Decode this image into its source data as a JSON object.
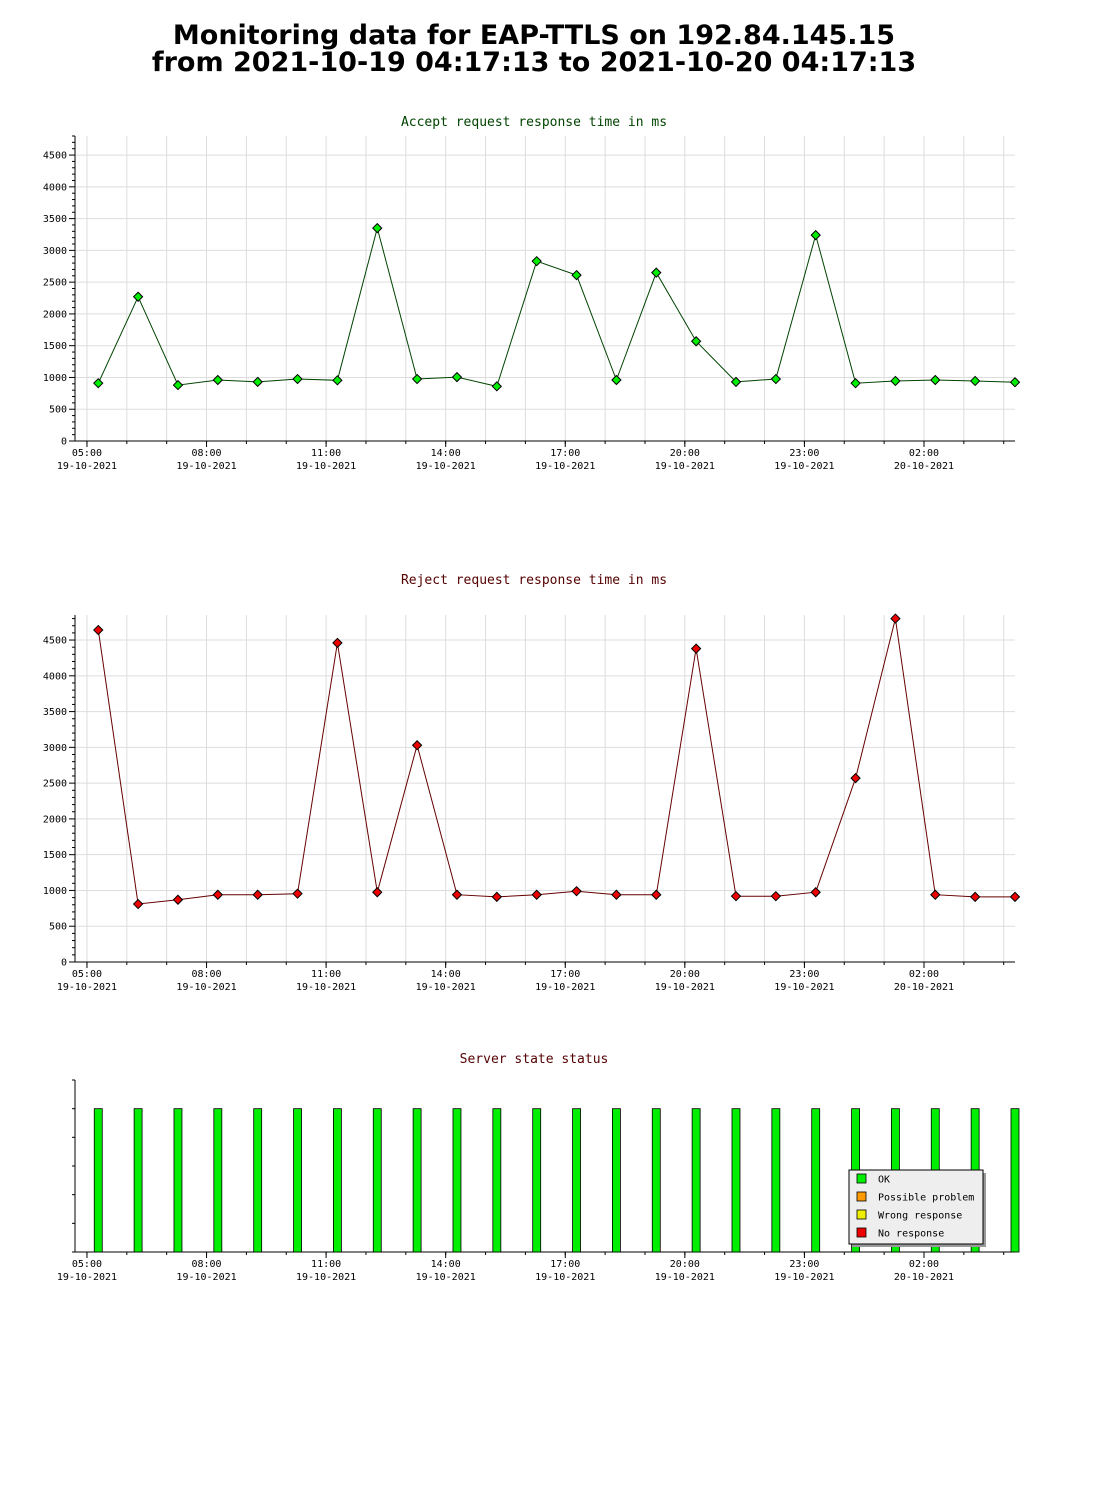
{
  "header": {
    "title_line1": "Monitoring data for EAP-TTLS on 192.84.145.15",
    "title_line2": "from 2021-10-19 04:17:13 to 2021-10-20 04:17:13"
  },
  "colors": {
    "accept_line": "#004400",
    "accept_marker": "#00ee00",
    "reject_line": "#660000",
    "reject_marker": "#ee0000",
    "accept_title": "#004400",
    "reject_title": "#550000",
    "status_title": "#550000",
    "grid": "#dddddd",
    "ok": "#00ee00",
    "possible_problem": "#ff9900",
    "wrong_response": "#eeee00",
    "no_response": "#ee0000"
  },
  "chart_data": [
    {
      "type": "line",
      "title": "Accept request response time in ms",
      "xlabel": "",
      "ylabel": "",
      "xlim": [
        "2021-10-19 04:42",
        "2021-10-20 04:17"
      ],
      "ylim": [
        0,
        4800
      ],
      "yticks": [
        0,
        500,
        1000,
        1500,
        2000,
        2500,
        3000,
        3500,
        4000,
        4500
      ],
      "xticks": [
        {
          "time": "05:00",
          "date": "19-10-2021",
          "t": "2021-10-19 05:00"
        },
        {
          "time": "08:00",
          "date": "19-10-2021",
          "t": "2021-10-19 08:00"
        },
        {
          "time": "11:00",
          "date": "19-10-2021",
          "t": "2021-10-19 11:00"
        },
        {
          "time": "14:00",
          "date": "19-10-2021",
          "t": "2021-10-19 14:00"
        },
        {
          "time": "17:00",
          "date": "19-10-2021",
          "t": "2021-10-19 17:00"
        },
        {
          "time": "20:00",
          "date": "19-10-2021",
          "t": "2021-10-19 20:00"
        },
        {
          "time": "23:00",
          "date": "19-10-2021",
          "t": "2021-10-19 23:00"
        },
        {
          "time": "02:00",
          "date": "20-10-2021",
          "t": "2021-10-20 02:00"
        }
      ],
      "grid": true,
      "x": [
        "2021-10-19 05:17",
        "2021-10-19 06:17",
        "2021-10-19 07:17",
        "2021-10-19 08:17",
        "2021-10-19 09:17",
        "2021-10-19 10:17",
        "2021-10-19 11:17",
        "2021-10-19 12:17",
        "2021-10-19 13:17",
        "2021-10-19 14:17",
        "2021-10-19 15:17",
        "2021-10-19 16:17",
        "2021-10-19 17:17",
        "2021-10-19 18:17",
        "2021-10-19 19:17",
        "2021-10-19 20:17",
        "2021-10-19 21:17",
        "2021-10-19 22:17",
        "2021-10-19 23:17",
        "2021-10-20 00:17",
        "2021-10-20 01:17",
        "2021-10-20 02:17",
        "2021-10-20 03:17",
        "2021-10-20 04:17"
      ],
      "series": [
        {
          "values": [
            910,
            2270,
            880,
            960,
            930,
            975,
            955,
            3350,
            975,
            1005,
            860,
            2830,
            2610,
            960,
            2650,
            1570,
            930,
            975,
            3240,
            910,
            945,
            960,
            945,
            925
          ]
        }
      ]
    },
    {
      "type": "line",
      "title": "Reject request response time in ms",
      "xlabel": "",
      "ylabel": "",
      "xlim": [
        "2021-10-19 04:42",
        "2021-10-20 04:17"
      ],
      "ylim": [
        0,
        4850
      ],
      "yticks": [
        0,
        500,
        1000,
        1500,
        2000,
        2500,
        3000,
        3500,
        4000,
        4500
      ],
      "xticks": [
        {
          "time": "05:00",
          "date": "19-10-2021",
          "t": "2021-10-19 05:00"
        },
        {
          "time": "08:00",
          "date": "19-10-2021",
          "t": "2021-10-19 08:00"
        },
        {
          "time": "11:00",
          "date": "19-10-2021",
          "t": "2021-10-19 11:00"
        },
        {
          "time": "14:00",
          "date": "19-10-2021",
          "t": "2021-10-19 14:00"
        },
        {
          "time": "17:00",
          "date": "19-10-2021",
          "t": "2021-10-19 17:00"
        },
        {
          "time": "20:00",
          "date": "19-10-2021",
          "t": "2021-10-19 20:00"
        },
        {
          "time": "23:00",
          "date": "19-10-2021",
          "t": "2021-10-19 23:00"
        },
        {
          "time": "02:00",
          "date": "20-10-2021",
          "t": "2021-10-20 02:00"
        }
      ],
      "grid": true,
      "x": [
        "2021-10-19 05:17",
        "2021-10-19 06:17",
        "2021-10-19 07:17",
        "2021-10-19 08:17",
        "2021-10-19 09:17",
        "2021-10-19 10:17",
        "2021-10-19 11:17",
        "2021-10-19 12:17",
        "2021-10-19 13:17",
        "2021-10-19 14:17",
        "2021-10-19 15:17",
        "2021-10-19 16:17",
        "2021-10-19 17:17",
        "2021-10-19 18:17",
        "2021-10-19 19:17",
        "2021-10-19 20:17",
        "2021-10-19 21:17",
        "2021-10-19 22:17",
        "2021-10-19 23:17",
        "2021-10-20 00:17",
        "2021-10-20 01:17",
        "2021-10-20 02:17",
        "2021-10-20 03:17",
        "2021-10-20 04:17"
      ],
      "series": [
        {
          "values": [
            4640,
            810,
            870,
            940,
            940,
            955,
            4460,
            975,
            3030,
            940,
            910,
            940,
            990,
            940,
            940,
            4380,
            920,
            920,
            975,
            2570,
            4800,
            940,
            910,
            910
          ]
        }
      ]
    },
    {
      "type": "bar",
      "title": "Server state status",
      "xlim": [
        "2021-10-19 04:42",
        "2021-10-20 04:17"
      ],
      "xticks": [
        {
          "time": "05:00",
          "date": "19-10-2021",
          "t": "2021-10-19 05:00"
        },
        {
          "time": "08:00",
          "date": "19-10-2021",
          "t": "2021-10-19 08:00"
        },
        {
          "time": "11:00",
          "date": "19-10-2021",
          "t": "2021-10-19 11:00"
        },
        {
          "time": "14:00",
          "date": "19-10-2021",
          "t": "2021-10-19 14:00"
        },
        {
          "time": "17:00",
          "date": "19-10-2021",
          "t": "2021-10-19 17:00"
        },
        {
          "time": "20:00",
          "date": "19-10-2021",
          "t": "2021-10-19 20:00"
        },
        {
          "time": "23:00",
          "date": "19-10-2021",
          "t": "2021-10-19 23:00"
        },
        {
          "time": "02:00",
          "date": "20-10-2021",
          "t": "2021-10-20 02:00"
        }
      ],
      "x": [
        "2021-10-19 05:17",
        "2021-10-19 06:17",
        "2021-10-19 07:17",
        "2021-10-19 08:17",
        "2021-10-19 09:17",
        "2021-10-19 10:17",
        "2021-10-19 11:17",
        "2021-10-19 12:17",
        "2021-10-19 13:17",
        "2021-10-19 14:17",
        "2021-10-19 15:17",
        "2021-10-19 16:17",
        "2021-10-19 17:17",
        "2021-10-19 18:17",
        "2021-10-19 19:17",
        "2021-10-19 20:17",
        "2021-10-19 21:17",
        "2021-10-19 22:17",
        "2021-10-19 23:17",
        "2021-10-20 00:17",
        "2021-10-20 01:17",
        "2021-10-20 02:17",
        "2021-10-20 03:17",
        "2021-10-20 04:17"
      ],
      "states": [
        "OK",
        "OK",
        "OK",
        "OK",
        "OK",
        "OK",
        "OK",
        "OK",
        "OK",
        "OK",
        "OK",
        "OK",
        "OK",
        "OK",
        "OK",
        "OK",
        "OK",
        "OK",
        "OK",
        "OK",
        "OK",
        "OK",
        "OK",
        "OK"
      ],
      "legend_placement": "bottom-right",
      "legend": [
        {
          "label": "OK",
          "color": "#00ee00"
        },
        {
          "label": "Possible problem",
          "color": "#ff9900"
        },
        {
          "label": "Wrong response",
          "color": "#eeee00"
        },
        {
          "label": "No response",
          "color": "#ee0000"
        }
      ]
    }
  ]
}
